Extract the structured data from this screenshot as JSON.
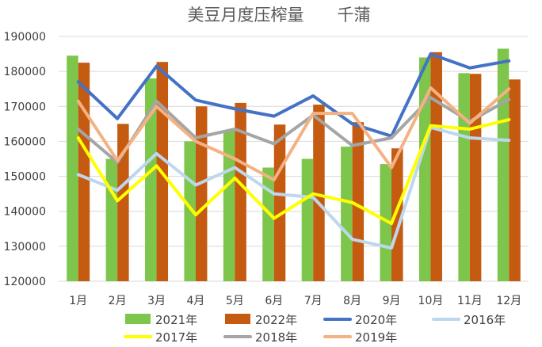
{
  "chart_data": {
    "type": "bar+line",
    "title": "美豆月度压榨量　　千蒲",
    "xlabel": "",
    "ylabel": "",
    "ylim": [
      120000,
      190000
    ],
    "yticks": [
      "190000",
      "180000",
      "170000",
      "160000",
      "150000",
      "140000",
      "130000",
      "120000"
    ],
    "grid": true,
    "legend_position": "bottom",
    "categories": [
      "1月",
      "2月",
      "3月",
      "4月",
      "5月",
      "6月",
      "7月",
      "8月",
      "9月",
      "10月",
      "11月",
      "12月"
    ],
    "bar_series": [
      {
        "name": "2021年",
        "color": "#7DC64B",
        "values": [
          184500,
          155000,
          178000,
          160000,
          163000,
          152500,
          155000,
          158500,
          153500,
          184000,
          179500,
          186500
        ]
      },
      {
        "name": "2022年",
        "color": "#C55A11",
        "values": [
          182500,
          165000,
          182700,
          170000,
          171000,
          164800,
          170500,
          165500,
          158000,
          185500,
          179300,
          177700
        ]
      }
    ],
    "line_series": [
      {
        "name": "2020年",
        "color": "#4472C4",
        "values": [
          177000,
          166500,
          181500,
          171800,
          169300,
          167200,
          173000,
          165000,
          161500,
          185000,
          181000,
          183000
        ]
      },
      {
        "name": "2016年",
        "color": "#BDD7EE",
        "values": [
          150500,
          146000,
          156500,
          147500,
          152500,
          145000,
          144000,
          132000,
          129500,
          164000,
          161000,
          160300
        ]
      },
      {
        "name": "2017年",
        "color": "#FFFF00",
        "values": [
          161000,
          143000,
          153000,
          139000,
          149500,
          138000,
          145000,
          142500,
          136500,
          164500,
          163500,
          166200
        ]
      },
      {
        "name": "2018年",
        "color": "#A5A5A5",
        "values": [
          163500,
          154000,
          171500,
          161000,
          163500,
          159300,
          167500,
          158800,
          161000,
          172500,
          165700,
          172000
        ]
      },
      {
        "name": "2019年",
        "color": "#F4B183",
        "values": [
          171500,
          154500,
          170000,
          160000,
          155000,
          149000,
          168000,
          168000,
          152500,
          175300,
          165200,
          175000
        ]
      }
    ],
    "legend": [
      "2021年",
      "2022年",
      "2020年",
      "2016年",
      "2017年",
      "2018年",
      "2019年"
    ]
  }
}
